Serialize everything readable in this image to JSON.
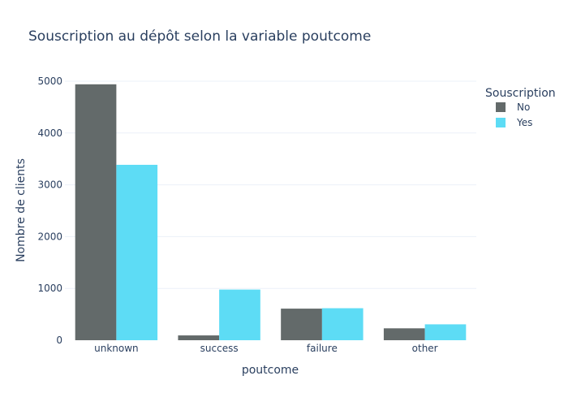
{
  "chart_data": {
    "type": "bar",
    "title": "Souscription au dépôt selon la variable poutcome",
    "xlabel": "poutcome",
    "ylabel": "Nombre de clients",
    "categories": [
      "unknown",
      "success",
      "failure",
      "other"
    ],
    "series": [
      {
        "name": "No",
        "color": "#636a6a",
        "values": [
          4940,
          93,
          610,
          230
        ]
      },
      {
        "name": "Yes",
        "color": "#5ddcf5",
        "values": [
          3386,
          978,
          618,
          307
        ]
      }
    ],
    "ylim": [
      0,
      5000
    ],
    "yticks": [
      0,
      1000,
      2000,
      3000,
      4000,
      5000
    ],
    "grid": true,
    "legend": {
      "title": "Souscription",
      "position": "top-right"
    }
  }
}
